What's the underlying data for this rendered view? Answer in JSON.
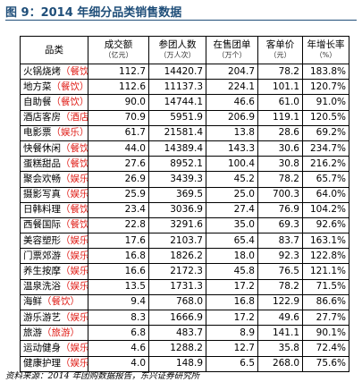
{
  "header": {
    "title": "图 9：2014 年细分品类销售数据"
  },
  "table": {
    "columns": [
      {
        "label": "品类"
      },
      {
        "label": "成交额",
        "unit": "（亿元）"
      },
      {
        "label": "参团人数",
        "unit": "（万人次）"
      },
      {
        "label": "在售团单",
        "unit": "（万个）"
      },
      {
        "label": "客单价",
        "unit": "（元）"
      },
      {
        "label": "年增长率",
        "unit": "（%）"
      }
    ],
    "rows": [
      {
        "name": "火锅烧烤",
        "tag": "（餐饮）",
        "values": [
          "112.7",
          "14420.7",
          "204.7",
          "78.2",
          "183.8%"
        ]
      },
      {
        "name": "地方菜",
        "tag": "（餐饮）",
        "values": [
          "112.6",
          "11137.3",
          "224.1",
          "101.1",
          "120.7%"
        ]
      },
      {
        "name": "自助餐",
        "tag": "（餐饮）",
        "values": [
          "90.0",
          "14744.1",
          "46.6",
          "61.0",
          "91.0%"
        ]
      },
      {
        "name": "酒店客房",
        "tag": "（酒店）",
        "values": [
          "70.9",
          "5951.9",
          "206.9",
          "119.1",
          "120.5%"
        ]
      },
      {
        "name": "电影票",
        "tag": "（娱乐）",
        "values": [
          "61.7",
          "21581.4",
          "13.8",
          "28.6",
          "69.2%"
        ]
      },
      {
        "name": "快餐休闲",
        "tag": "（餐饮）",
        "values": [
          "44.0",
          "14389.4",
          "143.3",
          "30.6",
          "234.7%"
        ]
      },
      {
        "name": "蛋糕甜品",
        "tag": "（餐饮）",
        "values": [
          "27.6",
          "8952.1",
          "100.4",
          "30.8",
          "216.2%"
        ]
      },
      {
        "name": "聚会欢畅",
        "tag": "（娱乐）",
        "values": [
          "26.9",
          "3439.3",
          "45.2",
          "78.2",
          "65.7%"
        ]
      },
      {
        "name": "摄影写真",
        "tag": "（娱乐）",
        "values": [
          "25.9",
          "369.5",
          "25.0",
          "700.3",
          "64.0%"
        ]
      },
      {
        "name": "日韩料理",
        "tag": "（餐饮）",
        "values": [
          "23.4",
          "3036.9",
          "27.4",
          "76.9",
          "104.2%"
        ]
      },
      {
        "name": "西餐国际",
        "tag": "（餐饮）",
        "values": [
          "22.8",
          "3291.6",
          "35.0",
          "69.3",
          "92.6%"
        ]
      },
      {
        "name": "美容塑形",
        "tag": "（娱乐）",
        "values": [
          "17.6",
          "2103.7",
          "65.4",
          "83.7",
          "163.1%"
        ]
      },
      {
        "name": "门票郊游",
        "tag": "（娱乐）",
        "values": [
          "16.8",
          "1826.2",
          "18.0",
          "92.3",
          "122.8%"
        ]
      },
      {
        "name": "养生按摩",
        "tag": "（娱乐）",
        "values": [
          "16.6",
          "2172.3",
          "45.8",
          "76.5",
          "121.1%"
        ]
      },
      {
        "name": "温泉洗浴",
        "tag": "（娱乐）",
        "values": [
          "13.5",
          "1731.3",
          "17.2",
          "78.2",
          "71.5%"
        ]
      },
      {
        "name": "海鲜",
        "tag": "（餐饮）",
        "values": [
          "9.4",
          "768.0",
          "16.8",
          "122.9",
          "86.6%"
        ]
      },
      {
        "name": "游乐游艺",
        "tag": "（娱乐）",
        "values": [
          "8.3",
          "1666.9",
          "17.2",
          "49.6",
          "27.7%"
        ]
      },
      {
        "name": "旅游",
        "tag": "（旅游）",
        "values": [
          "6.8",
          "483.7",
          "8.9",
          "141.1",
          "90.1%"
        ]
      },
      {
        "name": "运动健身",
        "tag": "（娱乐）",
        "values": [
          "4.6",
          "1288.2",
          "12.7",
          "35.8",
          "72.4%"
        ]
      },
      {
        "name": "健康护理",
        "tag": "（娱乐）",
        "values": [
          "4.0",
          "148.9",
          "6.5",
          "268.0",
          "75.6%"
        ]
      }
    ]
  },
  "footer": {
    "source": "资料来源：2014 年团购数据报告，东兴证券研究所"
  }
}
